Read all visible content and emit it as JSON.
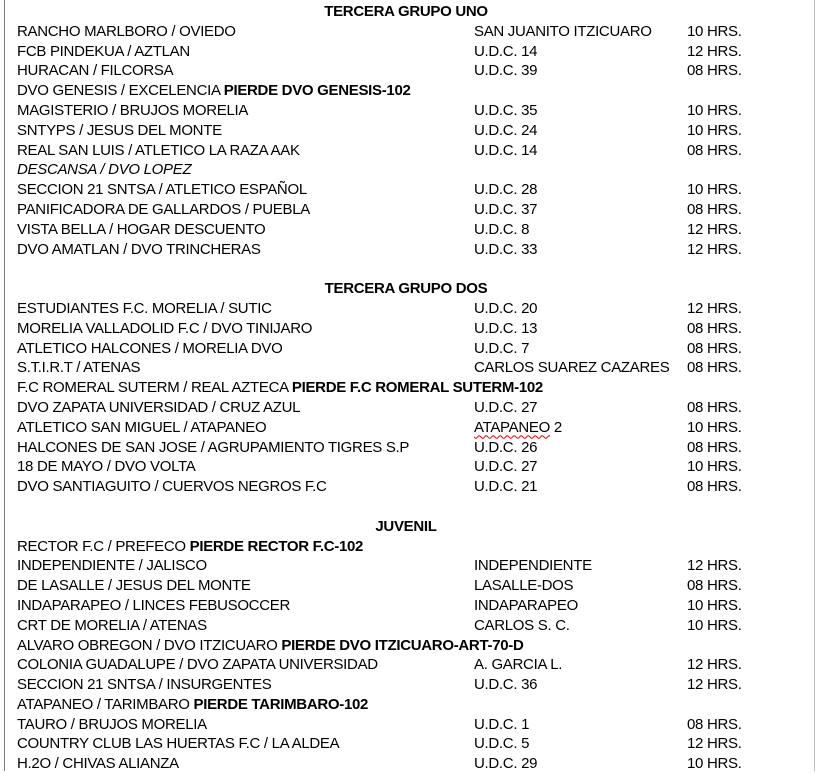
{
  "document": {
    "kind": "match-schedule",
    "text_color": "#000000",
    "page_background": "#ffffff",
    "spellcheck_color": "#e00000"
  },
  "sections": [
    {
      "title": "TERCERA GRUPO UNO",
      "rows": [
        {
          "match": "RANCHO MARLBORO / OVIEDO",
          "venue": "SAN JUANITO ITZICUARO",
          "time": "10 HRS."
        },
        {
          "match": "FCB PINDEKUA / AZTLAN",
          "venue": "U.D.C. 14",
          "time": "12 HRS."
        },
        {
          "match": "HURACAN / FILCORSA",
          "venue": "U.D.C. 39",
          "time": "08 HRS."
        },
        {
          "match": "DVO GENESIS / EXCELENCIA",
          "note": "PIERDE DVO GENESIS-102"
        },
        {
          "match": "MAGISTERIO / BRUJOS MORELIA",
          "venue": "U.D.C. 35",
          "time": "10 HRS."
        },
        {
          "match": "SNTYPS / JESUS DEL MONTE",
          "venue": "U.D.C. 24",
          "time": "10 HRS."
        },
        {
          "match": "REAL SAN LUIS / ATLETICO LA RAZA AAK",
          "venue": "U.D.C. 14",
          "time": "08 HRS."
        },
        {
          "match": "DESCANSA / DVO LOPEZ",
          "italic": true
        },
        {
          "match": "SECCION 21 SNTSA / ATLETICO ESPAÑOL",
          "venue": "U.D.C. 28",
          "time": "10 HRS."
        },
        {
          "match": "PANIFICADORA DE GALLARDOS / PUEBLA",
          "venue": "U.D.C. 37",
          "time": "08 HRS."
        },
        {
          "match": "VISTA BELLA / HOGAR DESCUENTO",
          "venue": "U.D.C. 8",
          "time": "12 HRS."
        },
        {
          "match": "DVO AMATLAN / DVO TRINCHERAS",
          "venue": "U.D.C. 33",
          "time": "12 HRS."
        }
      ]
    },
    {
      "title": "TERCERA GRUPO DOS",
      "rows": [
        {
          "match": "ESTUDIANTES F.C. MORELIA / SUTIC",
          "venue": "U.D.C. 20",
          "time": "12 HRS."
        },
        {
          "match": "MORELIA VALLADOLID F.C / DVO TINIJARO",
          "venue": "U.D.C. 13",
          "time": "08 HRS."
        },
        {
          "match": "ATLETICO HALCONES / MORELIA DVO",
          "venue": "U.D.C. 7",
          "time": "08 HRS."
        },
        {
          "match": "S.T.I.R.T / ATENAS",
          "venue": "CARLOS SUAREZ CAZARES",
          "time": "08 HRS."
        },
        {
          "match": "F.C ROMERAL SUTERM / REAL AZTECA",
          "note": "PIERDE F.C ROMERAL SUTERM-102"
        },
        {
          "match": "DVO ZAPATA UNIVERSIDAD / CRUZ AZUL",
          "venue": "U.D.C. 27",
          "time": "08 HRS."
        },
        {
          "match": "ATLETICO SAN MIGUEL / ATAPANEO",
          "venue": "ATAPANEO 2",
          "misspelled": "ATAPANEO",
          "time": "10 HRS."
        },
        {
          "match": "HALCONES DE SAN JOSE / AGRUPAMIENTO TIGRES S.P",
          "venue": "U.D.C. 26",
          "time": "08 HRS."
        },
        {
          "match": "18 DE MAYO / DVO VOLTA",
          "venue": "U.D.C. 27",
          "time": "10 HRS."
        },
        {
          "match": "DVO SANTIAGUITO / CUERVOS NEGROS F.C",
          "venue": "U.D.C. 21",
          "time": "08 HRS."
        }
      ]
    },
    {
      "title": "JUVENIL",
      "rows": [
        {
          "match": "RECTOR F.C / PREFECO",
          "note": "PIERDE RECTOR F.C-102"
        },
        {
          "match": "INDEPENDIENTE / JALISCO",
          "venue": "INDEPENDIENTE",
          "time": "12 HRS."
        },
        {
          "match": "DE LASALLE / JESUS DEL MONTE",
          "venue": "LASALLE-DOS",
          "time": "08 HRS."
        },
        {
          "match": "INDAPARAPEO / LINCES FEBUSOCCER",
          "venue": "INDAPARAPEO",
          "time": "10 HRS."
        },
        {
          "match": "CRT DE MORELIA / ATENAS",
          "venue": "CARLOS S. C.",
          "time": "10 HRS."
        },
        {
          "match": "ALVARO OBREGON / DVO ITZICUARO",
          "note": "PIERDE DVO ITZICUARO-ART-70-D"
        },
        {
          "match": "COLONIA GUADALUPE / DVO ZAPATA UNIVERSIDAD",
          "venue": "A. GARCIA L.",
          "time": "12 HRS."
        },
        {
          "match": "SECCION 21 SNTSA / INSURGENTES",
          "venue": "U.D.C. 36",
          "time": "12 HRS."
        },
        {
          "match": "ATAPANEO / TARIMBARO",
          "note": "PIERDE TARIMBARO-102"
        },
        {
          "match": "TAURO / BRUJOS MORELIA",
          "venue": "U.D.C. 1",
          "time": "08 HRS."
        },
        {
          "match": "COUNTRY CLUB LAS HUERTAS F.C / LA ALDEA",
          "venue": "U.D.C. 5",
          "time": "12 HRS."
        },
        {
          "match": "H.2O / CHIVAS ALIANZA",
          "venue": "U.D.C. 29",
          "time": "10 HRS."
        }
      ]
    }
  ]
}
